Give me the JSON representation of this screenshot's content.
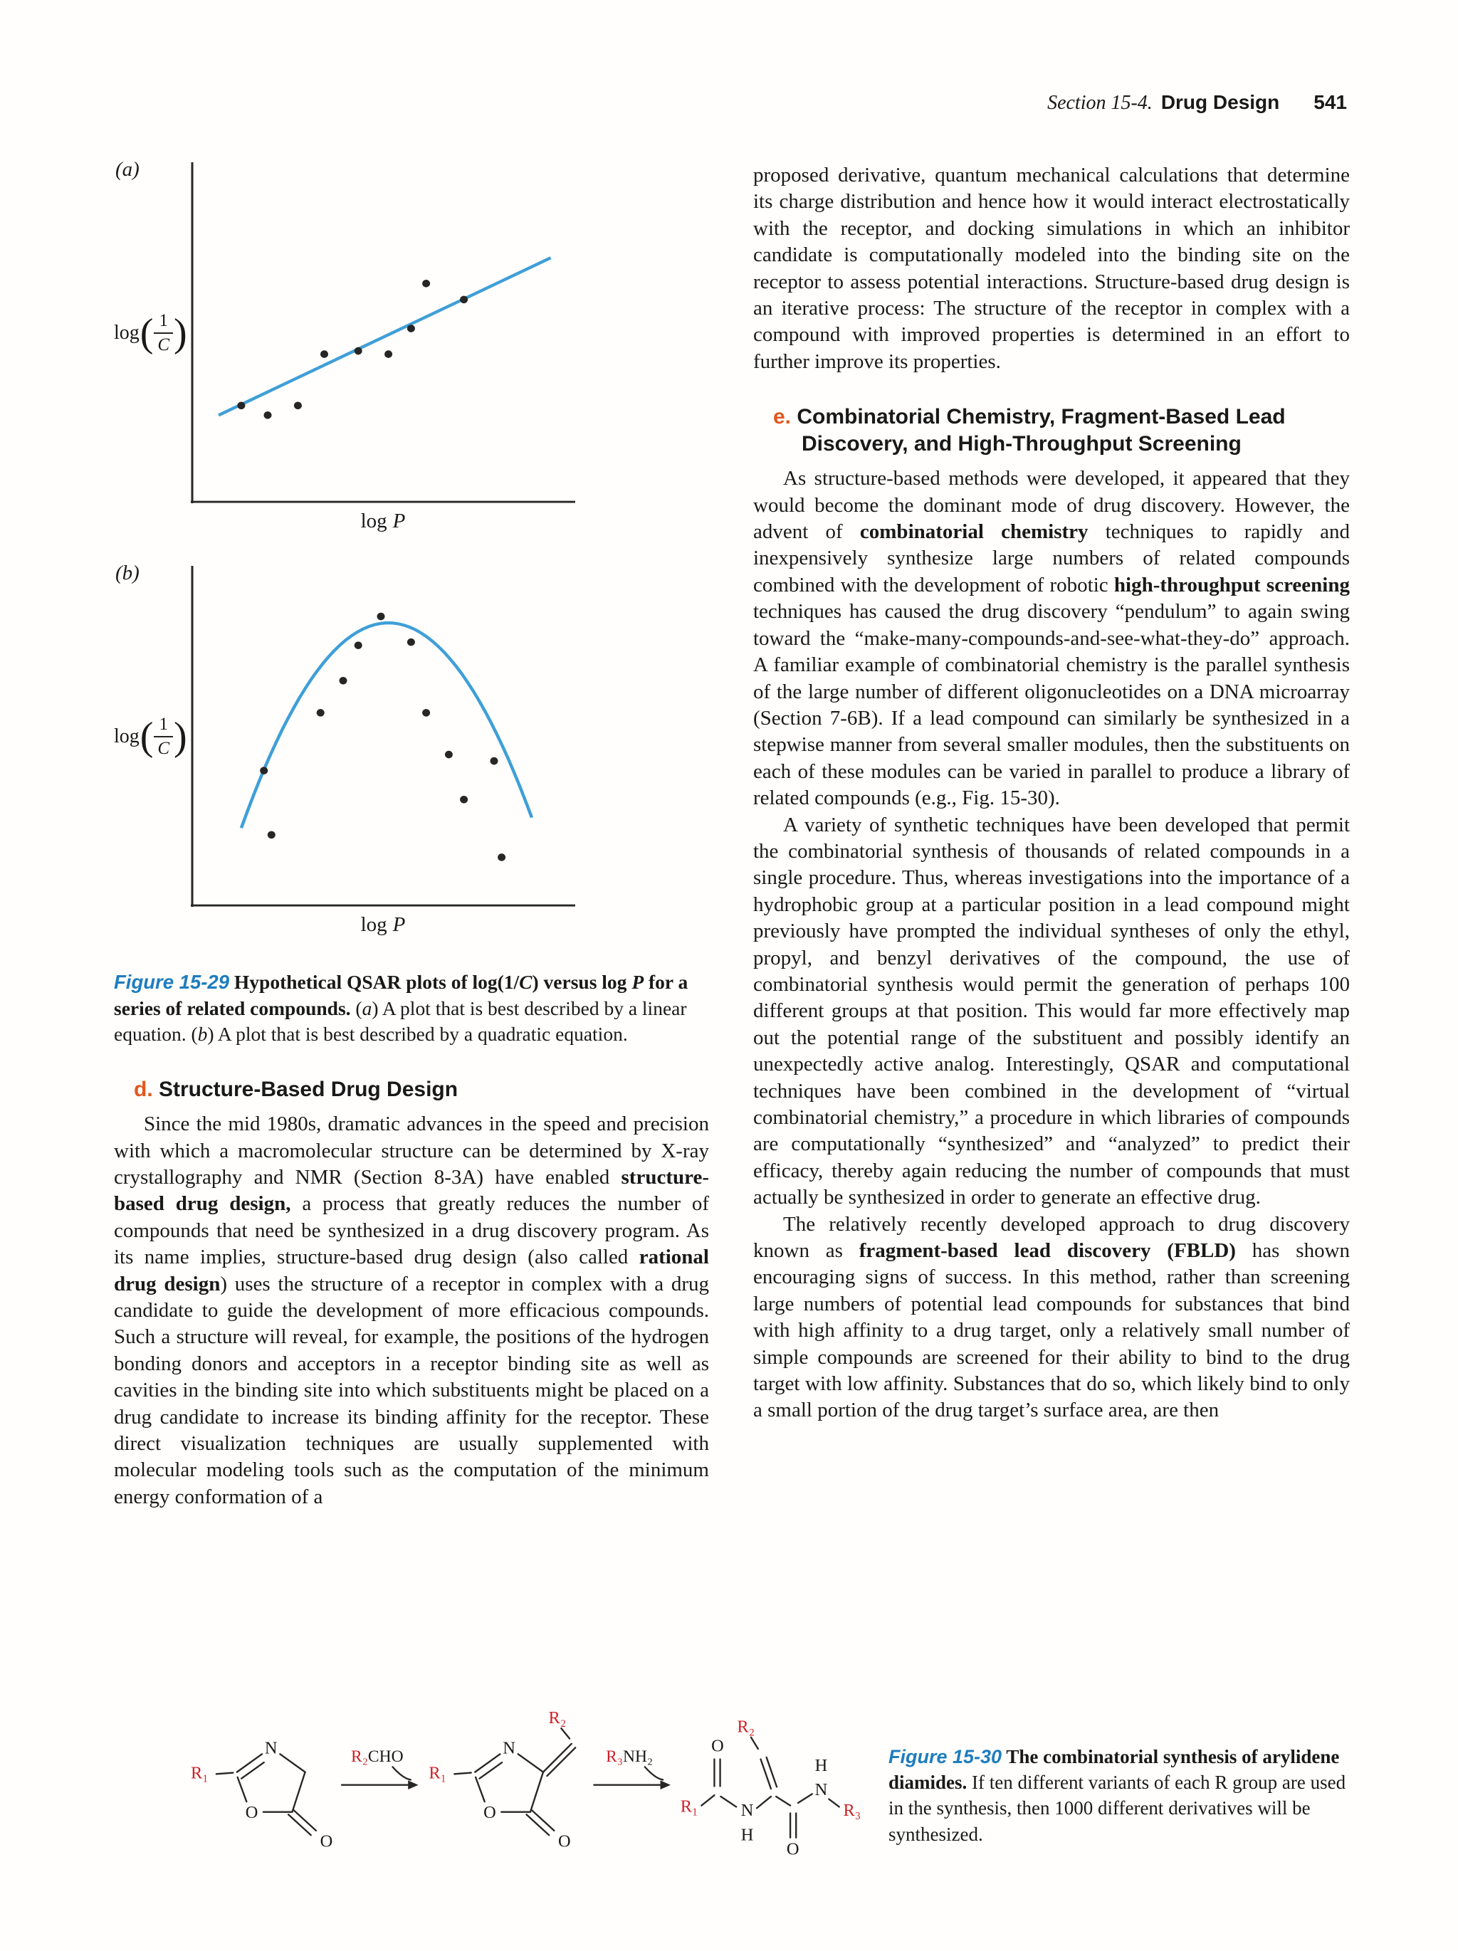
{
  "header": {
    "section": "Section 15-4.",
    "title": "Drug Design",
    "page_number": "541"
  },
  "figure29": {
    "panel_a_label": "(a)",
    "panel_b_label": "(b)",
    "y_axis": {
      "func": "log",
      "numerator": "1",
      "denominator": "C"
    },
    "x_axis": {
      "prefix": "log",
      "variable": "P"
    },
    "caption_runs": [
      {
        "t": "Figure 15-29",
        "s": "figlabel"
      },
      {
        "t": "   ",
        "s": "b"
      },
      {
        "t": "Hypothetical QSAR plots of log(1/",
        "s": "b"
      },
      {
        "t": "C",
        "s": "bi"
      },
      {
        "t": ") versus log ",
        "s": "b"
      },
      {
        "t": "P",
        "s": "bi"
      },
      {
        "t": " for a series of related compounds. ",
        "s": "b"
      },
      {
        "t": "("
      },
      {
        "t": "a",
        "s": "i"
      },
      {
        "t": ") A plot that is best described by a linear equation. ("
      },
      {
        "t": "b",
        "s": "i"
      },
      {
        "t": ") A plot that is best described by a quadratic equation."
      }
    ]
  },
  "headings": {
    "d_runs": [
      {
        "t": "d. ",
        "s": "accent"
      },
      {
        "t": "Structure-Based Drug Design"
      }
    ],
    "e_runs": [
      {
        "t": "e. ",
        "s": "accent"
      },
      {
        "t": "Combinatorial Chemistry, Fragment-Based Lead Discovery, and High-Throughput Screening"
      }
    ]
  },
  "left_column": {
    "para_structure_based_runs": [
      {
        "t": "Since the mid 1980s, dramatic advances in the speed and precision with which a macromolecular structure can be determined by X-ray crystallography and NMR (Section 8-3A) have enabled "
      },
      {
        "t": "structure-based drug design,",
        "s": "b"
      },
      {
        "t": " a process that greatly reduces the number of compounds that need be synthesized in a drug discovery program. As its name implies, structure-based drug design (also called "
      },
      {
        "t": "rational drug design",
        "s": "b"
      },
      {
        "t": ") uses the structure of a receptor in complex with a drug candidate to guide the development of more efficacious compounds. Such a structure will reveal, for example, the positions of the hydrogen bonding donors and acceptors in a receptor binding site as well as cavities in the binding site into which substituents might be placed on a drug candidate to increase its binding affinity for the receptor. These direct visualization techniques are usually supplemented with molecular modeling tools such as the computation of the minimum energy conformation of a"
      }
    ]
  },
  "right_column": {
    "para_continuation": "proposed derivative, quantum mechanical calculations that determine its charge distribution and hence how it would interact electrostatically with the receptor, and docking simulations in which an inhibitor candidate is computationally modeled into the binding site on the receptor to assess potential interactions. Structure-based drug design is an iterative process: The structure of the receptor in complex with a compound with improved properties is determined in an effort to further improve its properties.",
    "para_combinatorial_runs": [
      {
        "t": "As structure-based methods were developed, it appeared that they would become the dominant mode of drug discovery. However, the advent of "
      },
      {
        "t": "combinatorial chemistry",
        "s": "b"
      },
      {
        "t": " techniques to rapidly and inexpensively synthesize large numbers of related compounds combined with the development of robotic "
      },
      {
        "t": "high-throughput screening",
        "s": "b"
      },
      {
        "t": " techniques has caused the drug discovery “pendulum” to again swing toward the “make-many-compounds-and-see-what-they-do” approach. A familiar example of combinatorial chemistry is the parallel synthesis of the large number of different oligonucleotides on a DNA microarray (Section 7-6B). If a lead compound can similarly be synthesized in a stepwise manner from several smaller modules, then the substituents on each of these modules can be varied in parallel to produce a library of related compounds (e.g., Fig. 15-30)."
      }
    ],
    "para_synthetic": "A variety of synthetic techniques have been developed that permit the combinatorial synthesis of thousands of related compounds in a single procedure. Thus, whereas investigations into the importance of a hydrophobic group at a particular position in a lead compound might previously have prompted the individual syntheses of only the ethyl, propyl, and benzyl derivatives of the compound, the use of combinatorial synthesis would permit the generation of perhaps 100 different groups at that position. This would far more effectively map out the potential range of the substituent and possibly identify an unexpectedly active analog. Interestingly, QSAR and computational techniques have been combined in the development of “virtual combinatorial chemistry,” a procedure in which libraries of compounds are computationally “synthesized” and “analyzed” to predict their efficacy, thereby again reducing the number of compounds that must actually be synthesized in order to generate an effective drug.",
    "para_fbld_runs": [
      {
        "t": "The relatively recently developed approach to drug discovery known as "
      },
      {
        "t": "fragment-based lead discovery (FBLD)",
        "s": "b"
      },
      {
        "t": " has shown encouraging signs of success. In this method, rather than screening large numbers of potential lead compounds for substances that bind with high affinity to a drug target, only a relatively small number of simple compounds are screened for their ability to bind to the drug target with low affinity. Substances that do so, which likely bind to only a small portion of the drug target’s surface area, are then"
      }
    ]
  },
  "figure30": {
    "caption_runs": [
      {
        "t": "Figure 15-30",
        "s": "figlabel"
      },
      {
        "t": "   ",
        "s": "b"
      },
      {
        "t": "The combinatorial synthesis of arylidene diamides. ",
        "s": "b"
      },
      {
        "t": "If ten different variants of each R group are used in the synthesis, then 1000 different derivatives will be synthesized."
      }
    ]
  },
  "chem": {
    "r1": "R₁",
    "r2": "R₂",
    "r3": "R₃",
    "reagent1_r": "R₂",
    "reagent1_rest": "CHO",
    "reagent2_r": "R₃",
    "reagent2_rest": "NH₂",
    "n": "N",
    "o": "O",
    "h": "H"
  },
  "chart_data": [
    {
      "type": "scatter",
      "dom_id": "chart-a",
      "panel": "(a)",
      "title": "Hypothetical QSAR plot of log(1/C) versus log P — best described by a linear equation",
      "xlabel": "log P",
      "ylabel": "log(1/C)",
      "axes_numeric_labels": false,
      "grid": false,
      "points_relative_xy": [
        [
          0.13,
          0.3
        ],
        [
          0.2,
          0.27
        ],
        [
          0.28,
          0.3
        ],
        [
          0.35,
          0.46
        ],
        [
          0.44,
          0.47
        ],
        [
          0.52,
          0.46
        ],
        [
          0.58,
          0.54
        ],
        [
          0.62,
          0.68
        ],
        [
          0.72,
          0.63
        ]
      ],
      "fit": {
        "type": "linear",
        "from": [
          0.07,
          0.27
        ],
        "to": [
          0.95,
          0.76
        ],
        "color": "#3f9fd8"
      },
      "point_color": "#262626"
    },
    {
      "type": "scatter",
      "dom_id": "chart-b",
      "panel": "(b)",
      "title": "Hypothetical QSAR plot of log(1/C) versus log P — best described by a quadratic equation",
      "xlabel": "log P",
      "ylabel": "log(1/C)",
      "axes_numeric_labels": false,
      "grid": false,
      "points_relative_xy": [
        [
          0.19,
          0.42
        ],
        [
          0.21,
          0.22
        ],
        [
          0.34,
          0.6
        ],
        [
          0.4,
          0.7
        ],
        [
          0.44,
          0.81
        ],
        [
          0.5,
          0.9
        ],
        [
          0.58,
          0.82
        ],
        [
          0.62,
          0.6
        ],
        [
          0.68,
          0.47
        ],
        [
          0.72,
          0.33
        ],
        [
          0.8,
          0.45
        ],
        [
          0.82,
          0.15
        ]
      ],
      "fit": {
        "type": "quadratic",
        "vertex": [
          0.52,
          0.88
        ],
        "coeff": 4.2,
        "x_range": [
          0.13,
          0.9
        ],
        "color": "#3f9fd8"
      },
      "point_color": "#262626"
    }
  ]
}
